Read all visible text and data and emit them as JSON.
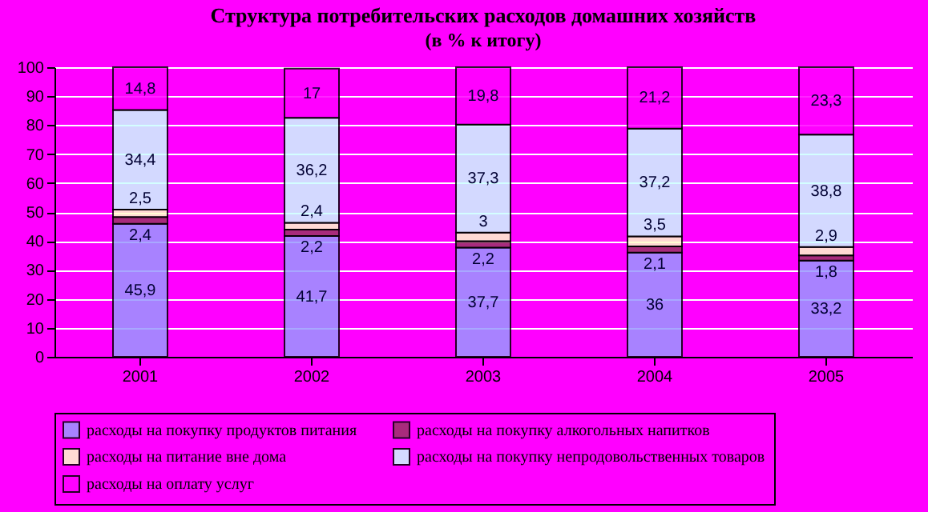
{
  "chart_data": {
    "type": "bar",
    "stacked": true,
    "title": "Структура потребительских расходов домашних хозяйств",
    "subtitle": "(в % к итогу)",
    "categories": [
      "2001",
      "2002",
      "2003",
      "2004",
      "2005"
    ],
    "ylim": [
      0,
      100
    ],
    "yticks": [
      0,
      10,
      20,
      30,
      40,
      50,
      60,
      70,
      80,
      90,
      100
    ],
    "grid": "y",
    "legend": "bottom",
    "series": [
      {
        "name": "расходы на покупку продуктов питания",
        "color": "#9999ff",
        "values": [
          45.9,
          41.7,
          37.7,
          36,
          33.2
        ],
        "value_labels": [
          "45,9",
          "41,7",
          "37,7",
          "36",
          "33,2"
        ]
      },
      {
        "name": "расходы на покупку алкогольных напитков",
        "color": "#993366",
        "values": [
          2.4,
          2.2,
          2.2,
          2.1,
          1.8
        ],
        "value_labels": [
          "2,4",
          "2,2",
          "2,2",
          "2,1",
          "1,8"
        ]
      },
      {
        "name": "расходы на питание вне дома",
        "color": "#ffffcc",
        "values": [
          2.5,
          2.4,
          3,
          3.5,
          2.9
        ],
        "value_labels": [
          "2,5",
          "2,4",
          "3",
          "3,5",
          "2,9"
        ]
      },
      {
        "name": "расходы на покупку непродовольственных товаров",
        "color": "#ccffff",
        "values": [
          34.4,
          36.2,
          37.3,
          37.2,
          38.8
        ],
        "value_labels": [
          "34,4",
          "36,2",
          "37,3",
          "37,2",
          "38,8"
        ]
      },
      {
        "name": "расходы на оплату услуг",
        "color": "#ff00ff",
        "values": [
          14.8,
          17,
          19.8,
          21.2,
          23.3
        ],
        "value_labels": [
          "14,8",
          "17",
          "19,8",
          "21,2",
          "23,3"
        ]
      }
    ]
  }
}
